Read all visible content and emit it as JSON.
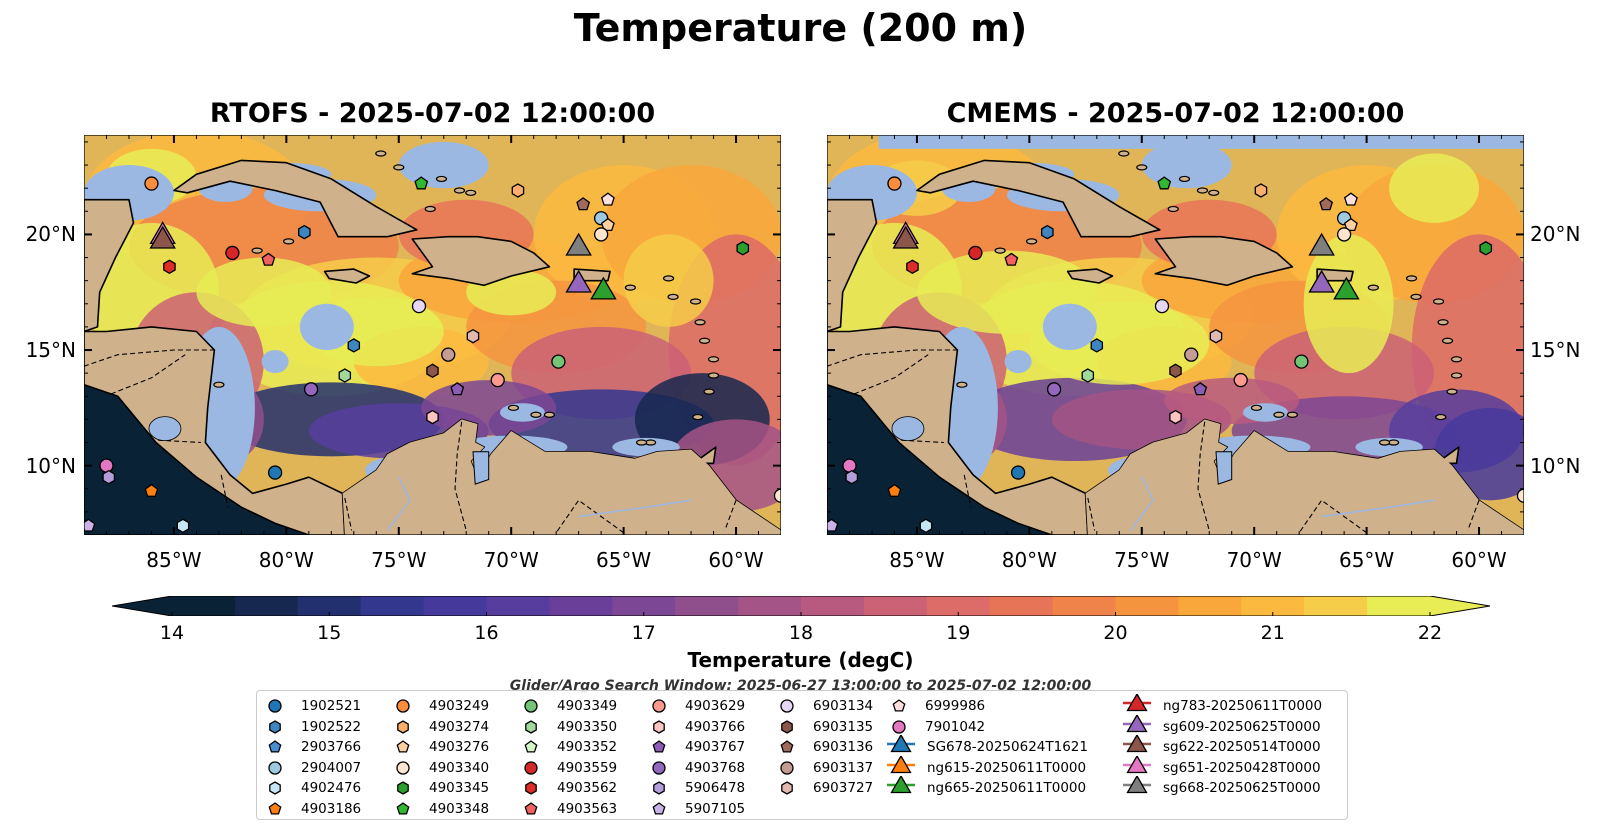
{
  "suptitle": "Temperature (200 m)",
  "panels": [
    {
      "title": "RTOFS - 2025-07-02 12:00:00"
    },
    {
      "title": "CMEMS - 2025-07-02 12:00:00"
    }
  ],
  "map_extent": {
    "lon": [
      -89,
      -58
    ],
    "lat": [
      7,
      24.3
    ]
  },
  "lon_ticks": [
    {
      "value": -85,
      "label": "85°W"
    },
    {
      "value": -80,
      "label": "80°W"
    },
    {
      "value": -75,
      "label": "75°W"
    },
    {
      "value": -70,
      "label": "70°W"
    },
    {
      "value": -65,
      "label": "65°W"
    },
    {
      "value": -60,
      "label": "60°W"
    }
  ],
  "lat_ticks": [
    {
      "value": 20,
      "label": "20°N"
    },
    {
      "value": 15,
      "label": "15°N"
    },
    {
      "value": 10,
      "label": "10°N"
    }
  ],
  "colorbar": {
    "label": "Temperature (degC)",
    "min": 14,
    "max": 22,
    "extend": "both",
    "ticks": [
      "14",
      "15",
      "16",
      "17",
      "18",
      "19",
      "20",
      "21",
      "22"
    ],
    "colors": [
      "#0a2236",
      "#16284f",
      "#23306f",
      "#33378e",
      "#46399c",
      "#573e9e",
      "#693f99",
      "#7c4794",
      "#8f4f8d",
      "#a45486",
      "#b85a7f",
      "#cb6275",
      "#dd6b67",
      "#e87457",
      "#ef8349",
      "#f5943f",
      "#f9a73b",
      "#fbba3f",
      "#f6cd49",
      "#e8ec55"
    ]
  },
  "search_window": "Glider/Argo Search Window: 2025-06-27 13:00:00 to 2025-07-02 12:00:00",
  "legend": [
    {
      "label": "1902521",
      "marker": "circle",
      "color": "#1f77b4"
    },
    {
      "label": "1902522",
      "marker": "hexagon",
      "color": "#3d86c2"
    },
    {
      "label": "2903766",
      "marker": "pentagon",
      "color": "#4a90d0"
    },
    {
      "label": "2904007",
      "marker": "circle",
      "color": "#9ecae1"
    },
    {
      "label": "4902476",
      "marker": "hexagon",
      "color": "#c6e6f5"
    },
    {
      "label": "4903186",
      "marker": "pentagon",
      "color": "#ff7f0e"
    },
    {
      "label": "4903249",
      "marker": "circle",
      "color": "#fd8d3c"
    },
    {
      "label": "4903274",
      "marker": "hexagon",
      "color": "#fdae6b"
    },
    {
      "label": "4903276",
      "marker": "pentagon",
      "color": "#fdd0a2"
    },
    {
      "label": "4903340",
      "marker": "circle",
      "color": "#fee6ce"
    },
    {
      "label": "4903345",
      "marker": "hexagon",
      "color": "#2ca02c"
    },
    {
      "label": "4903348",
      "marker": "pentagon",
      "color": "#31b831"
    },
    {
      "label": "4903349",
      "marker": "circle",
      "color": "#74c476"
    },
    {
      "label": "4903350",
      "marker": "hexagon",
      "color": "#a1d99b"
    },
    {
      "label": "4903352",
      "marker": "pentagon",
      "color": "#d4f5c8"
    },
    {
      "label": "4903559",
      "marker": "circle",
      "color": "#d62728"
    },
    {
      "label": "4903562",
      "marker": "hexagon",
      "color": "#de2d26"
    },
    {
      "label": "4903563",
      "marker": "pentagon",
      "color": "#f26060"
    },
    {
      "label": "4903629",
      "marker": "circle",
      "color": "#fc9a90"
    },
    {
      "label": "4903766",
      "marker": "hexagon",
      "color": "#fcc5c0"
    },
    {
      "label": "4903767",
      "marker": "pentagon",
      "color": "#8c5bb5"
    },
    {
      "label": "4903768",
      "marker": "circle",
      "color": "#9467bd"
    },
    {
      "label": "5906478",
      "marker": "hexagon",
      "color": "#b39ddb"
    },
    {
      "label": "5907105",
      "marker": "pentagon",
      "color": "#cab2e8"
    },
    {
      "label": "6903134",
      "marker": "circle",
      "color": "#e6d7f5"
    },
    {
      "label": "6903135",
      "marker": "hexagon",
      "color": "#8c564b"
    },
    {
      "label": "6903136",
      "marker": "pentagon",
      "color": "#a06a5c"
    },
    {
      "label": "6903137",
      "marker": "circle",
      "color": "#c49c94"
    },
    {
      "label": "6903727",
      "marker": "hexagon",
      "color": "#e2b9b0"
    },
    {
      "label": "6999986",
      "marker": "pentagon",
      "color": "#fde0dd"
    },
    {
      "label": "7901042",
      "marker": "circle",
      "color": "#e377c2"
    },
    {
      "label": "SG678-20250624T1621",
      "marker": "triangle-line",
      "color": "#1f77b4"
    },
    {
      "label": "ng615-20250611T0000",
      "marker": "triangle-line",
      "color": "#ff7f0e"
    },
    {
      "label": "ng665-20250611T0000",
      "marker": "triangle-line",
      "color": "#2ca02c"
    },
    {
      "label": "ng783-20250611T0000",
      "marker": "triangle-line",
      "color": "#d62728"
    },
    {
      "label": "sg609-20250625T0000",
      "marker": "triangle-line",
      "color": "#9467bd"
    },
    {
      "label": "sg622-20250514T0000",
      "marker": "triangle-line",
      "color": "#8c564b"
    },
    {
      "label": "sg651-20250428T0000",
      "marker": "triangle-line",
      "color": "#e377c2"
    },
    {
      "label": "sg668-20250625T0000",
      "marker": "triangle-line",
      "color": "#7f7f7f"
    }
  ],
  "observations": [
    {
      "label": "4903249",
      "lon": -86.0,
      "lat": 22.2
    },
    {
      "label": "4903348",
      "lon": -74.0,
      "lat": 22.2
    },
    {
      "label": "4903274",
      "lon": -69.7,
      "lat": 21.9
    },
    {
      "label": "6999986",
      "lon": -65.7,
      "lat": 21.5
    },
    {
      "label": "6903136",
      "lon": -66.8,
      "lat": 21.3
    },
    {
      "label": "2904007",
      "lon": -66.0,
      "lat": 20.7
    },
    {
      "label": "4903276",
      "lon": -65.7,
      "lat": 20.4
    },
    {
      "label": "4903340",
      "lon": -66.0,
      "lat": 20.0
    },
    {
      "label": "1902522",
      "lon": -79.2,
      "lat": 20.1
    },
    {
      "label": "4903559",
      "lon": -82.4,
      "lat": 19.2
    },
    {
      "label": "4903563",
      "lon": -80.8,
      "lat": 18.9
    },
    {
      "label": "4903562",
      "lon": -85.2,
      "lat": 18.6
    },
    {
      "label": "4903345",
      "lon": -59.7,
      "lat": 19.4
    },
    {
      "label": "6903134",
      "lon": -74.1,
      "lat": 16.9
    },
    {
      "label": "6903727",
      "lon": -71.7,
      "lat": 15.6
    },
    {
      "label": "1902522",
      "lon": -77.0,
      "lat": 15.2
    },
    {
      "label": "6903137",
      "lon": -72.8,
      "lat": 14.8
    },
    {
      "label": "4903349",
      "lon": -67.9,
      "lat": 14.5
    },
    {
      "label": "6903135",
      "lon": -73.5,
      "lat": 14.1
    },
    {
      "label": "4903350",
      "lon": -77.4,
      "lat": 13.9
    },
    {
      "label": "4903629",
      "lon": -70.6,
      "lat": 13.7
    },
    {
      "label": "4903768",
      "lon": -78.9,
      "lat": 13.3
    },
    {
      "label": "4903767",
      "lon": -72.4,
      "lat": 13.3
    },
    {
      "label": "4903766",
      "lon": -73.5,
      "lat": 12.1
    },
    {
      "label": "1902521",
      "lon": -80.5,
      "lat": 9.7
    },
    {
      "label": "7901042",
      "lon": -88.0,
      "lat": 10.0
    },
    {
      "label": "5906478",
      "lon": -87.9,
      "lat": 9.5
    },
    {
      "label": "4903186",
      "lon": -86.0,
      "lat": 8.9
    },
    {
      "label": "5907105",
      "lon": -88.8,
      "lat": 7.4
    },
    {
      "label": "4902476",
      "lon": -84.6,
      "lat": 7.4
    },
    {
      "label": "4903340",
      "lon": -58.0,
      "lat": 8.7
    }
  ],
  "gliders": [
    {
      "label": "sg651-20250428T0000",
      "lon": -85.5,
      "lat": 20.0
    },
    {
      "label": "sg622-20250514T0000",
      "lon": -85.5,
      "lat": 19.8
    },
    {
      "label": "sg668-20250625T0000",
      "lon": -67.0,
      "lat": 19.5
    },
    {
      "label": "sg609-20250625T0000",
      "lon": -67.0,
      "lat": 17.9
    },
    {
      "label": "ng665-20250611T0000",
      "lon": -65.9,
      "lat": 17.6
    }
  ]
}
